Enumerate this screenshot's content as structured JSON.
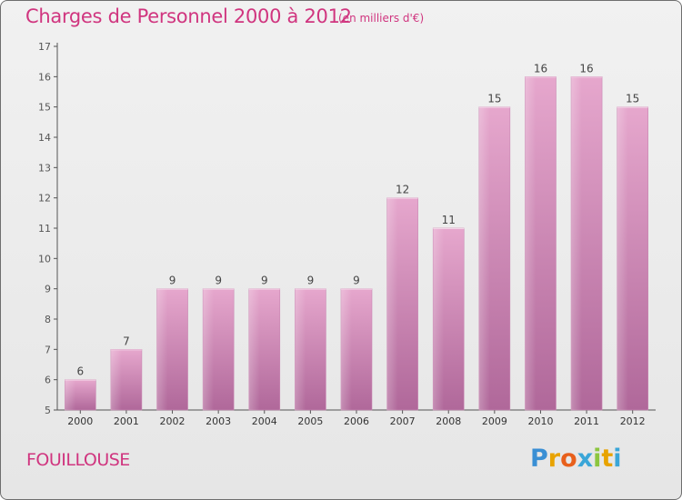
{
  "header": {
    "title": "Charges de Personnel 2000 à 2012",
    "subtitle": "(en milliers d'€)"
  },
  "footer": {
    "commune": "FOUILLOUSE",
    "logo_letters": [
      "P",
      "r",
      "o",
      "x",
      "i",
      "t",
      "i"
    ],
    "logo_colors": [
      "#3a8fd4",
      "#e8a300",
      "#e8601c",
      "#3aa6d8",
      "#8cc63f",
      "#e8a300",
      "#3aa6d8"
    ]
  },
  "chart_data": {
    "type": "bar",
    "categories": [
      "2000",
      "2001",
      "2002",
      "2003",
      "2004",
      "2005",
      "2006",
      "2007",
      "2008",
      "2009",
      "2010",
      "2011",
      "2012"
    ],
    "values": [
      6,
      7,
      9,
      9,
      9,
      9,
      9,
      12,
      11,
      15,
      16,
      16,
      15
    ],
    "data_labels": [
      "6",
      "7",
      "9",
      "9",
      "9",
      "9",
      "9",
      "12",
      "11",
      "15",
      "16",
      "16",
      "15"
    ],
    "yticks": [
      "5",
      "6",
      "7",
      "8",
      "9",
      "10",
      "11",
      "12",
      "13",
      "14",
      "15",
      "16",
      "17"
    ],
    "ylim": [
      5,
      17
    ],
    "grid": false,
    "bar_color": "#d47fb0",
    "title": "Charges de Personnel 2000 à 2012",
    "xlabel": "",
    "ylabel": ""
  }
}
